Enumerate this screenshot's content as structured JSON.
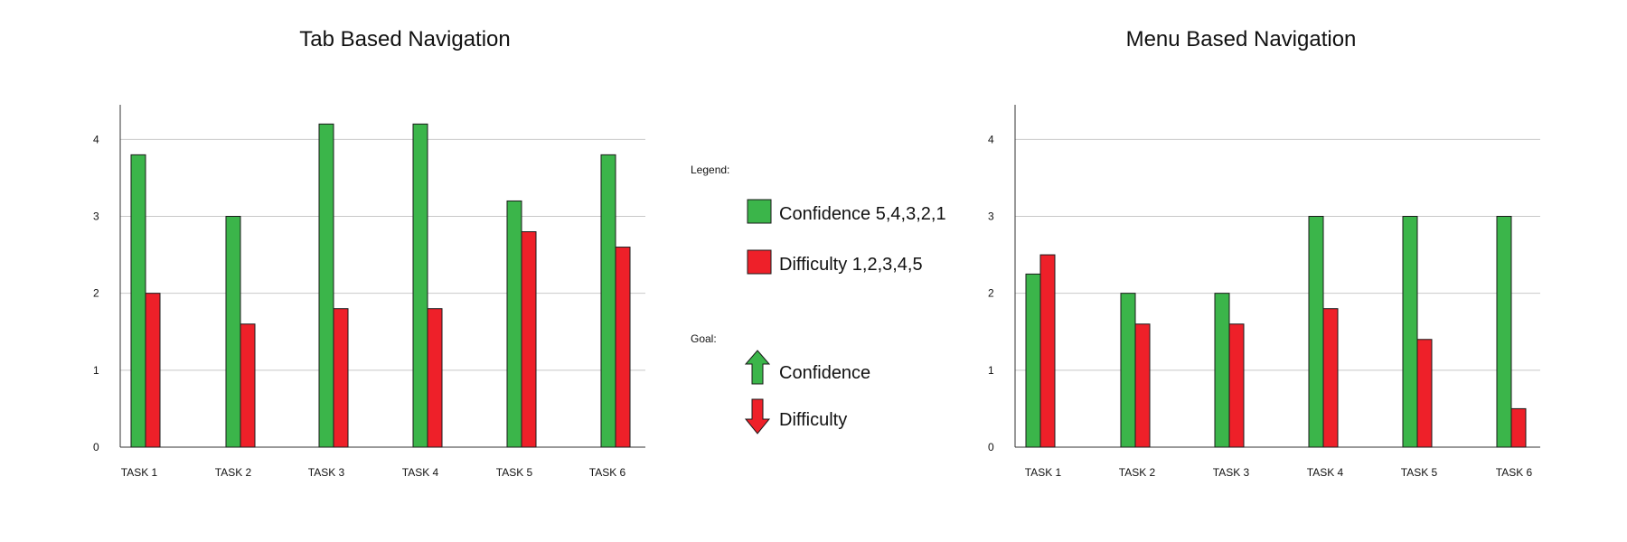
{
  "chart_data": [
    {
      "type": "bar",
      "title": "Tab Based Navigation",
      "categories": [
        "TASK 1",
        "TASK 2",
        "TASK 3",
        "TASK 4",
        "TASK 5",
        "TASK 6"
      ],
      "series": [
        {
          "name": "Confidence 5,4,3,2,1",
          "color": "#3bb54a",
          "values": [
            3.8,
            3.0,
            4.2,
            4.2,
            3.2,
            3.8
          ]
        },
        {
          "name": "Difficulty 1,2,3,4,5",
          "color": "#ee2029",
          "values": [
            2.0,
            1.6,
            1.8,
            1.8,
            2.8,
            2.6
          ]
        }
      ],
      "yticks": [
        "0",
        "1",
        "2",
        "3",
        "4"
      ],
      "ylim": [
        0,
        4.45
      ],
      "grid": true,
      "xlabel": "",
      "ylabel": ""
    },
    {
      "type": "bar",
      "title": "Menu Based Navigation",
      "categories": [
        "TASK 1",
        "TASK 2",
        "TASK 3",
        "TASK 4",
        "TASK 5",
        "TASK 6"
      ],
      "series": [
        {
          "name": "Confidence 5,4,3,2,1",
          "color": "#3bb54a",
          "values": [
            2.25,
            2.0,
            2.0,
            3.0,
            3.0,
            3.0
          ]
        },
        {
          "name": "Difficulty 1,2,3,4,5",
          "color": "#ee2029",
          "values": [
            2.5,
            1.6,
            1.6,
            1.8,
            1.4,
            0.5
          ]
        }
      ],
      "yticks": [
        "0",
        "1",
        "2",
        "3",
        "4"
      ],
      "ylim": [
        0,
        4.45
      ],
      "grid": true,
      "xlabel": "",
      "ylabel": ""
    }
  ],
  "legend": {
    "heading": "Legend:",
    "items": [
      {
        "label": "Confidence 5,4,3,2,1",
        "color": "#3bb54a"
      },
      {
        "label": "Difficulty 1,2,3,4,5",
        "color": "#ee2029"
      }
    ]
  },
  "goal": {
    "heading": "Goal:",
    "items": [
      {
        "label": "Confidence",
        "icon": "arrow-up-icon",
        "color": "#3bb54a"
      },
      {
        "label": "Difficulty",
        "icon": "arrow-down-icon",
        "color": "#ee2029"
      }
    ]
  }
}
